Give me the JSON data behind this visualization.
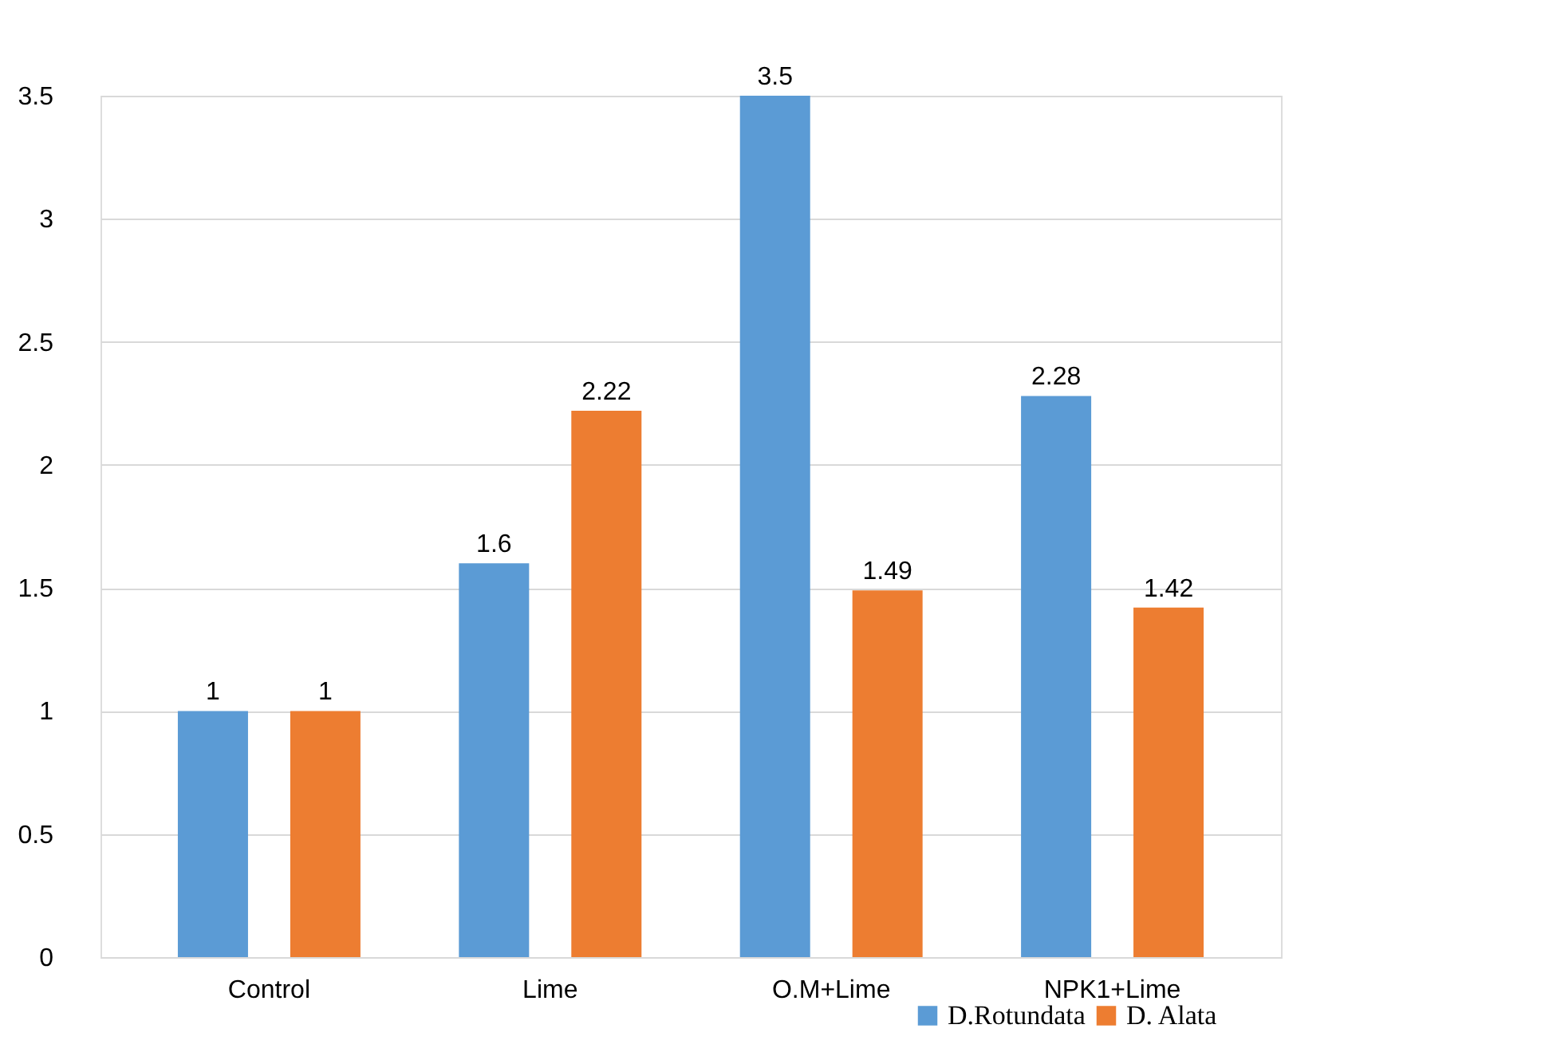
{
  "chart_data": {
    "type": "bar",
    "categories": [
      "Control",
      "Lime",
      "O.M+Lime",
      "NPK1+Lime"
    ],
    "series": [
      {
        "name": "D.Rotundata",
        "color": "#5b9bd5",
        "values": [
          1,
          1.6,
          3.5,
          2.28
        ]
      },
      {
        "name": "D. Alata",
        "color": "#ed7d31",
        "values": [
          1,
          2.22,
          1.49,
          1.42
        ]
      }
    ],
    "ylim": [
      0,
      3.5
    ],
    "yticks": [
      0,
      0.5,
      1,
      1.5,
      2,
      2.5,
      3,
      3.5
    ],
    "grid": "y",
    "legend": "bottom right",
    "data_labels": true
  }
}
